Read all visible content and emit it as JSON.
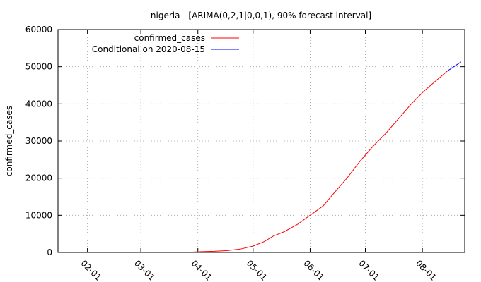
{
  "chart_data": {
    "type": "line",
    "title": "nigeria -  [ARIMA(0,2,1|0,0,1), 90% forecast interval]",
    "xlabel": "",
    "ylabel": "confirmed_cases",
    "x_ticks": [
      "02-01",
      "03-01",
      "04-01",
      "05-01",
      "06-01",
      "07-01",
      "08-01"
    ],
    "y_ticks": [
      "0",
      "10000",
      "20000",
      "30000",
      "40000",
      "50000",
      "60000"
    ],
    "xlim": [
      "2020-01-16",
      "2020-08-24"
    ],
    "ylim": [
      0,
      60000
    ],
    "grid": true,
    "legend_position": "top-left",
    "series": [
      {
        "name": "confirmed_cases",
        "color": "#ff0000",
        "points": [
          [
            "2020-03-20",
            0
          ],
          [
            "2020-03-27",
            65
          ],
          [
            "2020-04-03",
            210
          ],
          [
            "2020-04-10",
            300
          ],
          [
            "2020-04-17",
            500
          ],
          [
            "2020-04-24",
            900
          ],
          [
            "2020-05-01",
            1700
          ],
          [
            "2020-05-07",
            2900
          ],
          [
            "2020-05-12",
            4400
          ],
          [
            "2020-05-18",
            5600
          ],
          [
            "2020-05-25",
            7500
          ],
          [
            "2020-06-01",
            10000
          ],
          [
            "2020-06-08",
            12500
          ],
          [
            "2020-06-14",
            16000
          ],
          [
            "2020-06-21",
            20000
          ],
          [
            "2020-06-28",
            24500
          ],
          [
            "2020-07-05",
            28500
          ],
          [
            "2020-07-12",
            32000
          ],
          [
            "2020-07-19",
            36000
          ],
          [
            "2020-07-26",
            40000
          ],
          [
            "2020-08-02",
            43500
          ],
          [
            "2020-08-09",
            46500
          ],
          [
            "2020-08-15",
            49000
          ]
        ]
      },
      {
        "name": "Conditional on 2020-08-15",
        "color": "#0000ff",
        "points": [
          [
            "2020-08-15",
            49000
          ],
          [
            "2020-08-19",
            50300
          ],
          [
            "2020-08-22",
            51300
          ]
        ]
      }
    ]
  }
}
